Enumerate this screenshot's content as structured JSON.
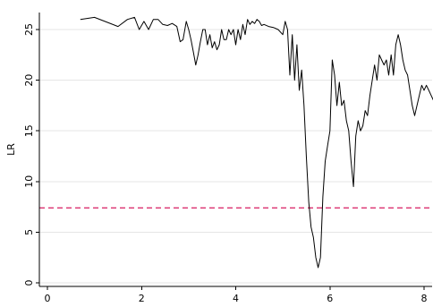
{
  "chart_data": {
    "type": "line",
    "title": "",
    "xlabel": "",
    "ylabel": "LR",
    "xlim": [
      0,
      8.2
    ],
    "ylim": [
      -0.5,
      26.5
    ],
    "xticks": [
      0,
      2,
      4,
      6,
      8
    ],
    "yticks": [
      0,
      5,
      10,
      15,
      20,
      25
    ],
    "grid": "horizontal",
    "series": [
      {
        "color": "#000000",
        "x": [
          0.7,
          1.0,
          1.5,
          1.7,
          1.85,
          1.95,
          2.05,
          2.15,
          2.25,
          2.35,
          2.45,
          2.55,
          2.65,
          2.75,
          2.82,
          2.88,
          2.95,
          3.0,
          3.05,
          3.1,
          3.15,
          3.2,
          3.25,
          3.3,
          3.35,
          3.4,
          3.45,
          3.5,
          3.55,
          3.6,
          3.65,
          3.7,
          3.75,
          3.8,
          3.85,
          3.9,
          3.95,
          4.0,
          4.05,
          4.1,
          4.15,
          4.2,
          4.25,
          4.3,
          4.35,
          4.4,
          4.45,
          4.5,
          4.55,
          4.6,
          4.7,
          4.8,
          4.9,
          5.0,
          5.05,
          5.1,
          5.15,
          5.2,
          5.25,
          5.3,
          5.35,
          5.4,
          5.45,
          5.5,
          5.55,
          5.6,
          5.65,
          5.7,
          5.75,
          5.8,
          5.85,
          5.9,
          5.95,
          6.0,
          6.05,
          6.1,
          6.15,
          6.2,
          6.25,
          6.3,
          6.35,
          6.4,
          6.45,
          6.5,
          6.55,
          6.6,
          6.65,
          6.7,
          6.75,
          6.8,
          6.85,
          6.9,
          6.95,
          7.0,
          7.05,
          7.1,
          7.15,
          7.2,
          7.25,
          7.3,
          7.35,
          7.4,
          7.45,
          7.5,
          7.55,
          7.6,
          7.65,
          7.7,
          7.75,
          7.8,
          7.85,
          7.9,
          7.95,
          8.0,
          8.05,
          8.1,
          8.15,
          8.2
        ],
        "values": [
          26.0,
          26.2,
          25.3,
          26.0,
          26.2,
          25.0,
          25.8,
          25.0,
          26.0,
          26.0,
          25.5,
          25.4,
          25.6,
          25.3,
          23.8,
          24.0,
          25.8,
          25.0,
          24.0,
          22.8,
          21.5,
          22.5,
          23.8,
          25.0,
          25.0,
          23.5,
          24.5,
          23.2,
          23.8,
          23.0,
          23.5,
          25.0,
          24.0,
          24.0,
          25.0,
          24.5,
          25.0,
          23.5,
          25.0,
          24.0,
          25.5,
          24.5,
          26.0,
          25.5,
          25.8,
          25.6,
          26.0,
          25.8,
          25.4,
          25.5,
          25.3,
          25.2,
          25.0,
          24.5,
          25.8,
          25.0,
          20.5,
          24.5,
          20.0,
          23.5,
          19.0,
          21.0,
          17.5,
          12.5,
          8.0,
          5.5,
          4.5,
          2.5,
          1.5,
          2.5,
          8.5,
          12.0,
          13.5,
          15.0,
          22.0,
          20.5,
          17.5,
          19.8,
          17.5,
          18.0,
          16.0,
          15.0,
          12.0,
          9.5,
          14.5,
          16.0,
          15.0,
          15.5,
          17.0,
          16.5,
          18.5,
          20.0,
          21.5,
          20.0,
          22.5,
          22.0,
          21.5,
          22.0,
          20.5,
          22.5,
          20.5,
          23.5,
          24.5,
          23.5,
          22.0,
          21.0,
          20.5,
          19.0,
          17.5,
          16.5,
          17.5,
          18.5,
          19.5,
          19.0,
          19.5,
          19.0,
          18.5,
          18.0
        ]
      }
    ],
    "reference_lines": [
      {
        "axis": "y",
        "value": 7.4,
        "style": "dashed",
        "color": "#d81b60"
      }
    ]
  }
}
